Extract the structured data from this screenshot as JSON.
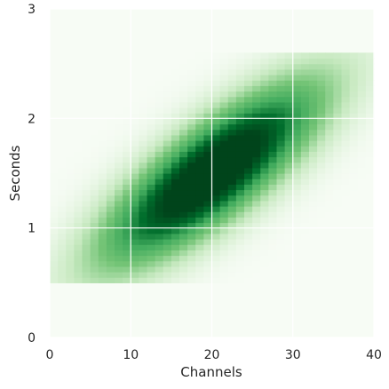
{
  "chart_data": {
    "type": "heatmap",
    "title": "",
    "xlabel": "Channels",
    "ylabel": "Seconds",
    "xlim": [
      0,
      40
    ],
    "ylim": [
      0,
      3
    ],
    "x_ticks": [
      0,
      10,
      20,
      30,
      40
    ],
    "x_tick_labels": [
      "0",
      "10",
      "20",
      "30",
      "40"
    ],
    "y_ticks": [
      0,
      1,
      2,
      3
    ],
    "y_tick_labels": [
      "0",
      "1",
      "2",
      "3"
    ],
    "grid": true,
    "colormap": "Greens",
    "colors": {
      "background": "#f7fcf5",
      "low": "#f7fcf5",
      "mid": "#41ab5d",
      "high": "#00441b",
      "grid": "#ffffff",
      "text": "#262626"
    },
    "data_extent": {
      "channels": [
        0,
        40
      ],
      "seconds": [
        0.5,
        2.6
      ]
    },
    "distribution": {
      "center_channel": 20,
      "center_seconds": 1.5,
      "sd_channel": 9,
      "sd_seconds": 0.55,
      "correlation": 0.8
    }
  }
}
